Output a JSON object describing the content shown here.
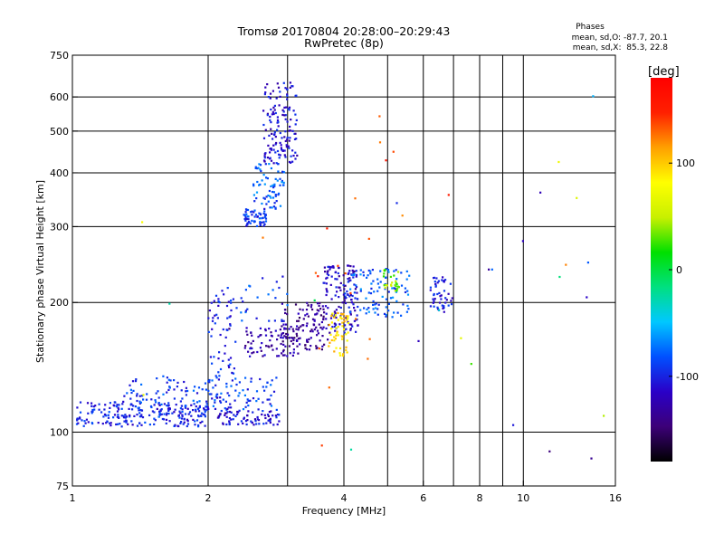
{
  "chart_data": {
    "type": "scatter",
    "title": "Tromsø 20170804 20:28:00–20:29:43",
    "subtitle": "RwPretec (8p)",
    "xlabel": "Frequency [MHz]",
    "ylabel": "Stationary phase Virtual Height [km]",
    "x_scale": "log",
    "y_scale": "log",
    "xlim": [
      1,
      16
    ],
    "ylim": [
      75,
      750
    ],
    "x_ticks": [
      1,
      2,
      4,
      6,
      8,
      10,
      16
    ],
    "x_tick_labels": [
      "1",
      "2",
      "4",
      "6",
      "8",
      "10",
      "16"
    ],
    "x_grid_extra": [
      3,
      5,
      7,
      9
    ],
    "y_ticks": [
      75,
      100,
      200,
      300,
      400,
      500,
      600,
      750
    ],
    "y_tick_labels": [
      "75",
      "100",
      "200",
      "300",
      "400",
      "500",
      "600",
      "750"
    ],
    "grid": true,
    "phases": {
      "heading": "Phases",
      "line1": "mean, sd,O: -87.7, 20.1",
      "line2": "mean, sd,X:  85.3, 22.8"
    },
    "colorbar": {
      "label": "[deg]",
      "range": [
        -180,
        180
      ],
      "tick_values": [
        100,
        0,
        -100
      ],
      "tick_labels": [
        "100",
        "0",
        "-100"
      ],
      "colormap": [
        "#000000",
        "#3c0078",
        "#2a00c8",
        "#0050ff",
        "#00c8ff",
        "#00e080",
        "#00e000",
        "#c8f000",
        "#ffff00",
        "#ffa000",
        "#ff2000",
        "#ff0000"
      ]
    },
    "point_clusters": [
      {
        "name_hint": "low-E",
        "x": [
          1.02,
          2.0
        ],
        "y": [
          103,
          118
        ],
        "phase": -100,
        "count": 220
      },
      {
        "name_hint": "low-E2",
        "x": [
          1.3,
          2.9
        ],
        "y": [
          108,
          135
        ],
        "phase": -90,
        "count": 160
      },
      {
        "name_hint": "low-E3",
        "x": [
          2.1,
          2.9
        ],
        "y": [
          104,
          112
        ],
        "phase": -110,
        "count": 70
      },
      {
        "name_hint": "rise",
        "x": [
          2.0,
          2.3
        ],
        "y": [
          112,
          215
        ],
        "phase": -100,
        "count": 70
      },
      {
        "name_hint": "F1-blue",
        "x": [
          2.4,
          3.2
        ],
        "y": [
          150,
          175
        ],
        "phase": -125,
        "count": 80
      },
      {
        "name_hint": "F1-purple",
        "x": [
          2.9,
          3.7
        ],
        "y": [
          155,
          200
        ],
        "phase": -135,
        "count": 110
      },
      {
        "name_hint": "F1-mixed",
        "x": [
          3.6,
          4.3
        ],
        "y": [
          170,
          245
        ],
        "phase": -115,
        "count": 140
      },
      {
        "name_hint": "F1-yellow",
        "x": [
          3.7,
          4.1
        ],
        "y": [
          150,
          190
        ],
        "phase": 95,
        "count": 55
      },
      {
        "name_hint": "F1-upper",
        "x": [
          4.0,
          5.6
        ],
        "y": [
          185,
          240
        ],
        "phase": -80,
        "count": 100
      },
      {
        "name_hint": "F1-green",
        "x": [
          4.9,
          5.3
        ],
        "y": [
          212,
          240
        ],
        "phase": 40,
        "count": 25
      },
      {
        "name_hint": "F2-cluster",
        "x": [
          6.2,
          7.0
        ],
        "y": [
          190,
          230
        ],
        "phase": -105,
        "count": 50
      },
      {
        "name_hint": "F2-trace",
        "x": [
          2.4,
          2.7
        ],
        "y": [
          300,
          330
        ],
        "phase": -95,
        "count": 60
      },
      {
        "name_hint": "F2-trace2",
        "x": [
          2.5,
          2.95
        ],
        "y": [
          330,
          420
        ],
        "phase": -80,
        "count": 70
      },
      {
        "name_hint": "F2-trace3",
        "x": [
          2.65,
          3.15
        ],
        "y": [
          420,
          650
        ],
        "phase": -110,
        "count": 140
      },
      {
        "name_hint": "mid-scatter",
        "x": [
          2.2,
          3.0
        ],
        "y": [
          180,
          235
        ],
        "phase": -90,
        "count": 30
      },
      {
        "name_hint": "sparse",
        "x": [
          1.4,
          16
        ],
        "y": [
          78,
          620
        ],
        "phase": 0,
        "count": 30
      },
      {
        "name_hint": "orange",
        "x": [
          3.5,
          5.7
        ],
        "y": [
          90,
          600
        ],
        "phase": 140,
        "count": 18
      }
    ]
  }
}
